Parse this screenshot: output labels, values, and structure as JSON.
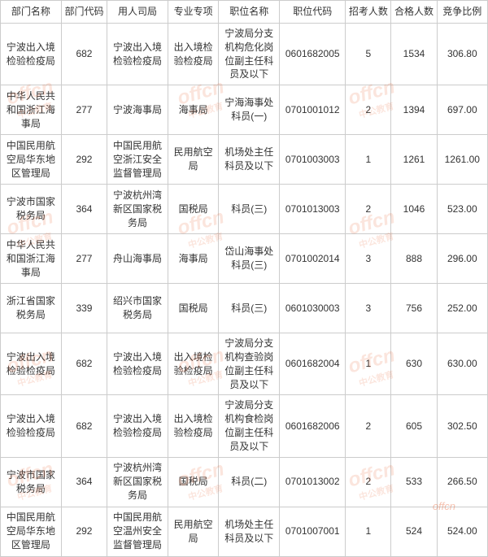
{
  "watermark": {
    "main": "offcn",
    "sub": "中公教育"
  },
  "table": {
    "columns": [
      "部门名称",
      "部门代码",
      "用人司局",
      "专业专项",
      "职位名称",
      "职位代码",
      "招考人数",
      "合格人数",
      "竞争比例"
    ],
    "rows": [
      [
        "宁波出入境检验检疫局",
        "682",
        "宁波出入境检验检疫局",
        "出入境检验检疫局",
        "宁波局分支机构危化岗位副主任科员及以下",
        "0601682005",
        "5",
        "1534",
        "306.80"
      ],
      [
        "中华人民共和国浙江海事局",
        "277",
        "宁波海事局",
        "海事局",
        "宁海海事处科员(一)",
        "0701001012",
        "2",
        "1394",
        "697.00"
      ],
      [
        "中国民用航空局华东地区管理局",
        "292",
        "中国民用航空浙江安全监督管理局",
        "民用航空局",
        "机场处主任科员及以下",
        "0701003003",
        "1",
        "1261",
        "1261.00"
      ],
      [
        "宁波市国家税务局",
        "364",
        "宁波杭州湾新区国家税务局",
        "国税局",
        "科员(三)",
        "0701013003",
        "2",
        "1046",
        "523.00"
      ],
      [
        "中华人民共和国浙江海事局",
        "277",
        "舟山海事局",
        "海事局",
        "岱山海事处科员(三)",
        "0701002014",
        "3",
        "888",
        "296.00"
      ],
      [
        "浙江省国家税务局",
        "339",
        "绍兴市国家税务局",
        "国税局",
        "科员(三)",
        "0601030003",
        "3",
        "756",
        "252.00"
      ],
      [
        "宁波出入境检验检疫局",
        "682",
        "宁波出入境检验检疫局",
        "出入境检验检疫局",
        "宁波局分支机构查验岗位副主任科员及以下",
        "0601682004",
        "1",
        "630",
        "630.00"
      ],
      [
        "宁波出入境检验检疫局",
        "682",
        "宁波出入境检验检疫局",
        "出入境检验检疫局",
        "宁波局分支机构食检岗位副主任科员及以下",
        "0601682006",
        "2",
        "605",
        "302.50"
      ],
      [
        "宁波市国家税务局",
        "364",
        "宁波杭州湾新区国家税务局",
        "国税局",
        "科员(二)",
        "0701013002",
        "2",
        "533",
        "266.50"
      ],
      [
        "中国民用航空局华东地区管理局",
        "292",
        "中国民用航空温州安全监督管理局",
        "民用航空局",
        "机场处主任科员及以下",
        "0701007001",
        "1",
        "524",
        "524.00"
      ]
    ],
    "border_color": "#cccccc",
    "text_color": "#333333",
    "background_color": "#ffffff",
    "font_size": 12,
    "watermark_color": "rgba(230, 80, 30, 0.15)"
  }
}
